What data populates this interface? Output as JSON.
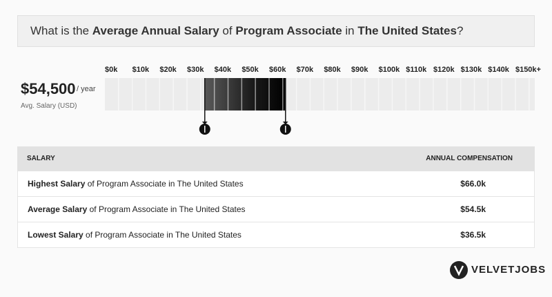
{
  "title": {
    "parts": [
      {
        "text": "What is the ",
        "bold": false
      },
      {
        "text": "Average Annual Salary",
        "bold": true
      },
      {
        "text": " of ",
        "bold": false
      },
      {
        "text": "Program Associate",
        "bold": true
      },
      {
        "text": " in ",
        "bold": false
      },
      {
        "text": "The United States",
        "bold": true
      },
      {
        "text": "?",
        "bold": false
      }
    ]
  },
  "summary": {
    "salary": "$54,500",
    "period": "/ year",
    "caption": "Avg. Salary (USD)"
  },
  "scale": {
    "ticks": [
      {
        "value": 0,
        "label": "$0k"
      },
      {
        "value": 10,
        "label": "$10k"
      },
      {
        "value": 20,
        "label": "$20k"
      },
      {
        "value": 30,
        "label": "$30k"
      },
      {
        "value": 40,
        "label": "$40k"
      },
      {
        "value": 50,
        "label": "$50k"
      },
      {
        "value": 60,
        "label": "$60k"
      },
      {
        "value": 70,
        "label": "$70k"
      },
      {
        "value": 80,
        "label": "$80k"
      },
      {
        "value": 90,
        "label": "$90k"
      },
      {
        "value": 100,
        "label": "$100k"
      },
      {
        "value": 110,
        "label": "$110k"
      },
      {
        "value": 120,
        "label": "$120k"
      },
      {
        "value": 130,
        "label": "$130k"
      },
      {
        "value": 140,
        "label": "$140k"
      },
      {
        "value": 150,
        "label": "$150k+"
      }
    ],
    "low": 36.5,
    "high": 66
  },
  "table": {
    "header": [
      "SALARY",
      "ANNUAL COMPENSATION"
    ],
    "rows": [
      {
        "bold": "Highest Salary",
        "rest": " of Program Associate in The United States",
        "value": "$66.0k"
      },
      {
        "bold": "Average Salary",
        "rest": " of Program Associate in The United States",
        "value": "$54.5k"
      },
      {
        "bold": "Lowest Salary",
        "rest": " of Program Associate in The United States",
        "value": "$36.5k"
      }
    ]
  },
  "brand": "VELVETJOBS"
}
